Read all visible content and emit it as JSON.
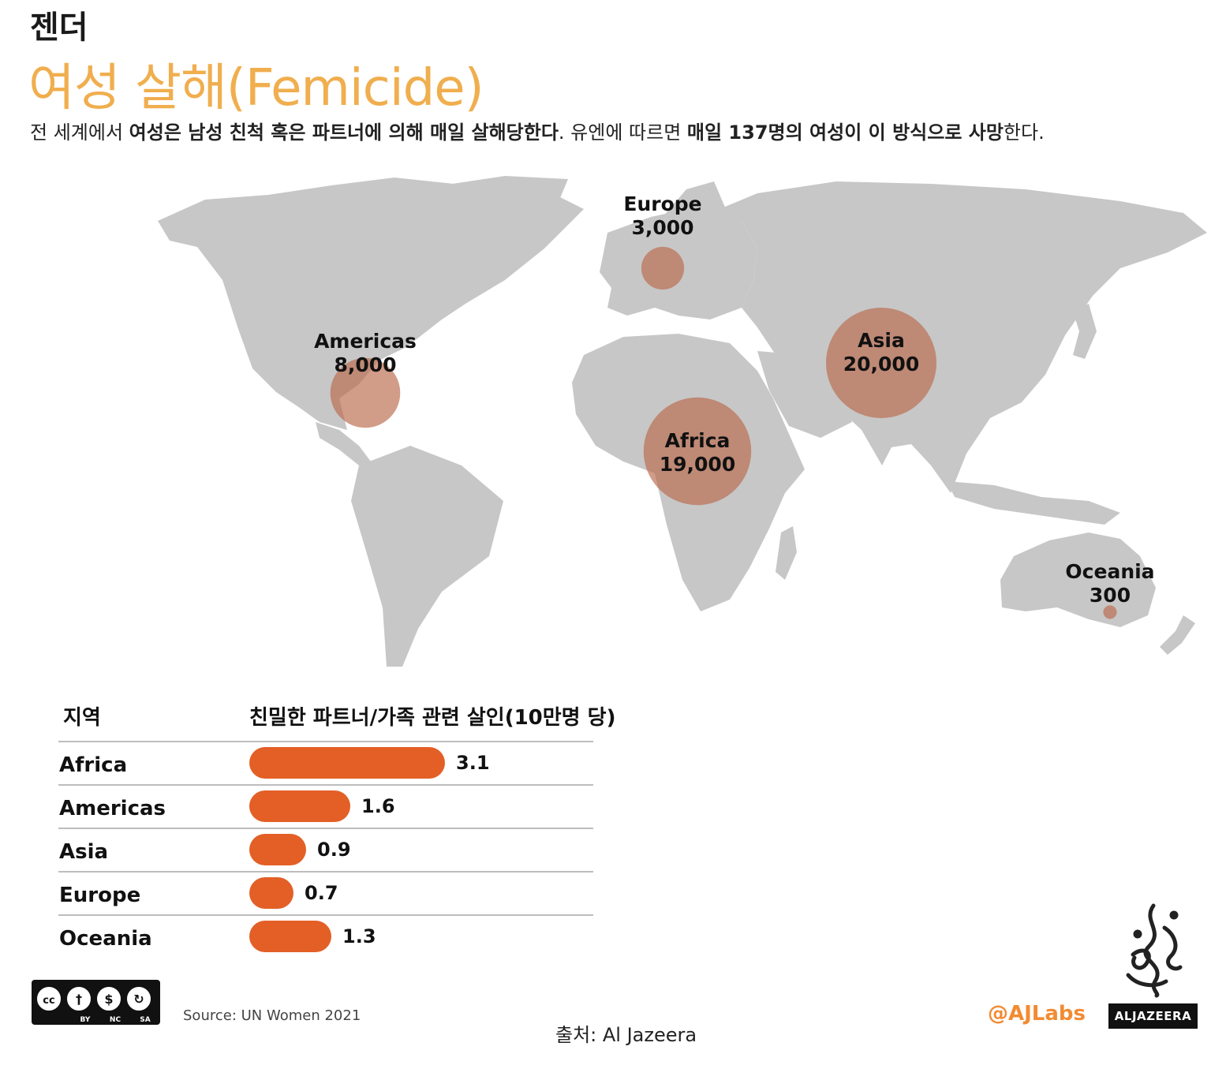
{
  "header": {
    "category": "젠더",
    "title": "여성 살해(Femicide)",
    "intro": [
      {
        "text": "전 세계에서 ",
        "bold": false
      },
      {
        "text": "여성은 남성 친척 혹은 파트너에 의해 매일 살해당한다",
        "bold": true
      },
      {
        "text": ". 유엔에 따르면 ",
        "bold": false
      },
      {
        "text": "매일 137명의 여성이 이 방식으로 사망",
        "bold": true
      },
      {
        "text": "한다.",
        "bold": false
      }
    ]
  },
  "colors": {
    "title": "#f0ae4e",
    "land": "#c7c7c7",
    "bubble": "#b9694a",
    "bar": "#e35f26",
    "ajlabs": "#f28b32"
  },
  "chart_data": [
    {
      "type": "bubble-map",
      "regions": [
        {
          "name": "Europe",
          "value": 3000,
          "value_label": "3,000"
        },
        {
          "name": "Americas",
          "value": 8000,
          "value_label": "8,000"
        },
        {
          "name": "Asia",
          "value": 20000,
          "value_label": "20,000"
        },
        {
          "name": "Africa",
          "value": 19000,
          "value_label": "19,000"
        },
        {
          "name": "Oceania",
          "value": 300,
          "value_label": "300"
        }
      ]
    },
    {
      "type": "bar",
      "orientation": "horizontal",
      "category_header": "지역",
      "value_header": "친밀한 파트너/가족 관련 살인(10만명 당)",
      "categories": [
        "Africa",
        "Americas",
        "Asia",
        "Europe",
        "Oceania"
      ],
      "values": [
        3.1,
        1.6,
        0.9,
        0.7,
        1.3
      ],
      "value_labels": [
        "3.1",
        "1.6",
        "0.9",
        "0.7",
        "1.3"
      ]
    }
  ],
  "footer": {
    "cc_icons": [
      "cc-icon",
      "by-icon",
      "nc-icon",
      "sa-icon"
    ],
    "cc_labels": [
      "BY",
      "NC",
      "SA"
    ],
    "source": "Source: UN Women 2021",
    "credit": "출처: Al Jazeera",
    "ajlabs": "@AJLabs",
    "aljazeera": "ALJAZEERA"
  }
}
